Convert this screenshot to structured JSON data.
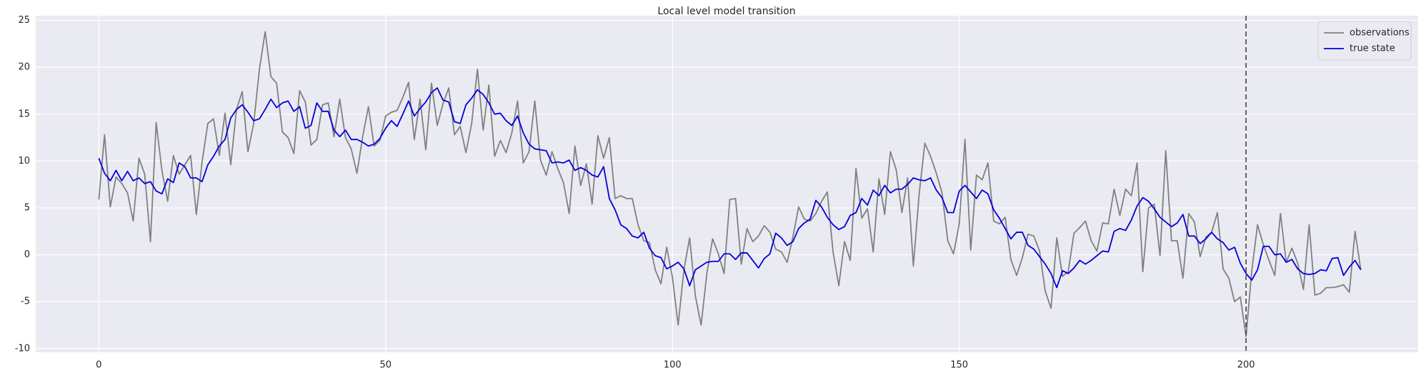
{
  "chart_data": {
    "type": "line",
    "title": "Local level model transition",
    "x": [
      0,
      1,
      2,
      3,
      4,
      5,
      6,
      7,
      8,
      9,
      10,
      11,
      12,
      13,
      14,
      15,
      16,
      17,
      18,
      19,
      20,
      21,
      22,
      23,
      24,
      25,
      26,
      27,
      28,
      29,
      30,
      31,
      32,
      33,
      34,
      35,
      36,
      37,
      38,
      39,
      40,
      41,
      42,
      43,
      44,
      45,
      46,
      47,
      48,
      49,
      50,
      51,
      52,
      53,
      54,
      55,
      56,
      57,
      58,
      59,
      60,
      61,
      62,
      63,
      64,
      65,
      66,
      67,
      68,
      69,
      70,
      71,
      72,
      73,
      74,
      75,
      76,
      77,
      78,
      79,
      80,
      81,
      82,
      83,
      84,
      85,
      86,
      87,
      88,
      89,
      90,
      91,
      92,
      93,
      94,
      95,
      96,
      97,
      98,
      99,
      100,
      101,
      102,
      103,
      104,
      105,
      106,
      107,
      108,
      109,
      110,
      111,
      112,
      113,
      114,
      115,
      116,
      117,
      118,
      119,
      120,
      121,
      122,
      123,
      124,
      125,
      126,
      127,
      128,
      129,
      130,
      131,
      132,
      133,
      134,
      135,
      136,
      137,
      138,
      139,
      140,
      141,
      142,
      143,
      144,
      145,
      146,
      147,
      148,
      149,
      150,
      151,
      152,
      153,
      154,
      155,
      156,
      157,
      158,
      159,
      160,
      161,
      162,
      163,
      164,
      165,
      166,
      167,
      168,
      169,
      170,
      171,
      172,
      173,
      174,
      175,
      176,
      177,
      178,
      179,
      180,
      181,
      182,
      183,
      184,
      185,
      186,
      187,
      188,
      189,
      190,
      191,
      192,
      193,
      194,
      195,
      196,
      197,
      198,
      199,
      200,
      201,
      202,
      203,
      204,
      205,
      206,
      207,
      208,
      209,
      210,
      211,
      212,
      213,
      214,
      215,
      216,
      217,
      218,
      219,
      220
    ],
    "series": [
      {
        "name": "observations",
        "color": "#808080",
        "values": [
          5.9,
          12.8,
          5.1,
          8.3,
          7.6,
          6.6,
          3.6,
          10.3,
          8.6,
          1.4,
          14.1,
          9.0,
          5.7,
          10.6,
          8.6,
          9.6,
          10.6,
          4.3,
          9.9,
          14.0,
          14.5,
          10.6,
          15.1,
          9.6,
          15.5,
          17.4,
          11.0,
          14.0,
          19.8,
          23.8,
          19.0,
          18.3,
          13.1,
          12.5,
          10.8,
          17.5,
          16.3,
          11.7,
          12.3,
          16.0,
          16.2,
          12.6,
          16.6,
          12.5,
          11.3,
          8.7,
          12.6,
          15.8,
          11.6,
          12.2,
          14.8,
          15.2,
          15.4,
          16.8,
          18.4,
          12.3,
          16.6,
          11.2,
          18.3,
          13.8,
          16.1,
          17.8,
          12.8,
          13.7,
          10.9,
          14.0,
          19.8,
          13.3,
          18.1,
          10.5,
          12.2,
          10.9,
          13.0,
          16.4,
          9.8,
          11.0,
          16.4,
          10.1,
          8.5,
          11.0,
          9.2,
          7.7,
          4.4,
          11.6,
          7.4,
          9.7,
          5.4,
          12.7,
          10.3,
          12.5,
          6.0,
          6.3,
          6.0,
          6.0,
          3.2,
          1.5,
          1.3,
          -1.6,
          -3.1,
          0.8,
          -2.4,
          -7.5,
          -1.6,
          1.8,
          -4.4,
          -7.5,
          -2.0,
          1.7,
          0.1,
          -2.0,
          5.9,
          6.0,
          -1.0,
          2.8,
          1.4,
          2.0,
          3.1,
          2.4,
          0.6,
          0.3,
          -0.8,
          1.9,
          5.1,
          3.8,
          3.6,
          4.4,
          5.7,
          6.7,
          0.3,
          -3.3,
          1.4,
          -0.6,
          9.2,
          3.9,
          4.9,
          0.3,
          8.1,
          4.3,
          11.0,
          9.1,
          4.5,
          8.2,
          -1.2,
          6.4,
          11.9,
          10.5,
          8.7,
          6.6,
          1.5,
          0.1,
          3.3,
          12.3,
          0.5,
          8.5,
          8.0,
          9.8,
          3.6,
          3.3,
          4.0,
          -0.5,
          -2.2,
          -0.3,
          2.2,
          2.0,
          0.4,
          -3.9,
          -5.7,
          1.8,
          -2.3,
          -1.8,
          2.3,
          2.9,
          3.6,
          1.5,
          0.4,
          3.4,
          3.3,
          7.0,
          4.2,
          7.0,
          6.3,
          9.8,
          -1.8,
          5.0,
          5.4,
          -0.1,
          11.1,
          1.5,
          1.5,
          -2.5,
          4.4,
          3.5,
          -0.2,
          1.9,
          2.4,
          4.5,
          -1.5,
          -2.5,
          -5.0,
          -4.5,
          -8.7,
          -1.7,
          3.2,
          1.1,
          -0.6,
          -2.2,
          4.4,
          -0.8,
          0.7,
          -0.9,
          -3.7,
          3.2,
          -4.3,
          -4.1,
          -3.5,
          -3.5,
          -3.4,
          -3.2,
          -4.0,
          2.5,
          -1.6
        ]
      },
      {
        "name": "true state",
        "color": "#0000dd",
        "values": [
          10.3,
          8.7,
          7.9,
          9.0,
          7.9,
          8.9,
          7.9,
          8.2,
          7.6,
          7.8,
          6.8,
          6.5,
          8.1,
          7.7,
          9.8,
          9.4,
          8.2,
          8.2,
          7.8,
          9.6,
          10.5,
          11.6,
          12.3,
          14.6,
          15.5,
          16.0,
          15.2,
          14.3,
          14.5,
          15.5,
          16.6,
          15.7,
          16.2,
          16.4,
          15.3,
          15.8,
          13.5,
          13.8,
          16.2,
          15.3,
          15.3,
          13.3,
          12.6,
          13.3,
          12.3,
          12.3,
          12.0,
          11.6,
          11.8,
          12.4,
          13.5,
          14.3,
          13.7,
          15.0,
          16.4,
          14.8,
          15.6,
          16.3,
          17.3,
          17.8,
          16.5,
          16.3,
          14.2,
          14.0,
          16.0,
          16.7,
          17.6,
          17.1,
          16.2,
          15.0,
          15.1,
          14.3,
          13.8,
          14.8,
          13.0,
          11.8,
          11.3,
          11.2,
          11.1,
          9.8,
          9.9,
          9.8,
          10.1,
          9.0,
          9.3,
          9.0,
          8.5,
          8.3,
          9.4,
          6.0,
          4.8,
          3.2,
          2.8,
          2.0,
          1.8,
          2.4,
          0.7,
          -0.1,
          -0.3,
          -1.5,
          -1.2,
          -0.8,
          -1.5,
          -3.3,
          -1.6,
          -1.2,
          -0.8,
          -0.7,
          -0.7,
          0.1,
          0.1,
          -0.5,
          0.2,
          0.2,
          -0.6,
          -1.4,
          -0.4,
          0.1,
          2.3,
          1.8,
          1.0,
          1.4,
          2.8,
          3.4,
          3.8,
          5.8,
          5.1,
          4.0,
          3.2,
          2.7,
          3.0,
          4.2,
          4.5,
          6.0,
          5.3,
          6.9,
          6.3,
          7.4,
          6.6,
          7.0,
          7.0,
          7.5,
          8.2,
          8.0,
          7.9,
          8.2,
          6.9,
          6.1,
          4.5,
          4.5,
          6.8,
          7.4,
          6.7,
          6.0,
          6.9,
          6.5,
          4.8,
          3.9,
          2.8,
          1.7,
          2.4,
          2.4,
          1.0,
          0.6,
          -0.2,
          -1.0,
          -2.0,
          -3.5,
          -1.7,
          -2.0,
          -1.4,
          -0.6,
          -1.0,
          -0.6,
          -0.1,
          0.4,
          0.3,
          2.5,
          2.8,
          2.6,
          3.7,
          5.2,
          6.1,
          5.7,
          4.9,
          4.0,
          3.5,
          3.0,
          3.4,
          4.3,
          2.0,
          2.0,
          1.2,
          1.7,
          2.4,
          1.7,
          1.3,
          0.5,
          0.8,
          -0.9,
          -2.0,
          -2.7,
          -1.6,
          0.9,
          0.9,
          0.0,
          0.1,
          -0.8,
          -0.5,
          -1.5,
          -2.0,
          -2.1,
          -2.0,
          -1.6,
          -1.7,
          -0.4,
          -0.3,
          -2.2,
          -1.3,
          -0.6,
          -1.6
        ]
      }
    ],
    "xlim": [
      -11,
      230
    ],
    "ylim": [
      -10.4,
      25.5
    ],
    "xticks": [
      0,
      50,
      100,
      150,
      200
    ],
    "yticks": [
      -10,
      -5,
      0,
      5,
      10,
      15,
      20,
      25
    ],
    "grid": true,
    "legend": "upper right",
    "vline": 200,
    "vline_color": "#555555",
    "background": "#eaeaf2"
  }
}
